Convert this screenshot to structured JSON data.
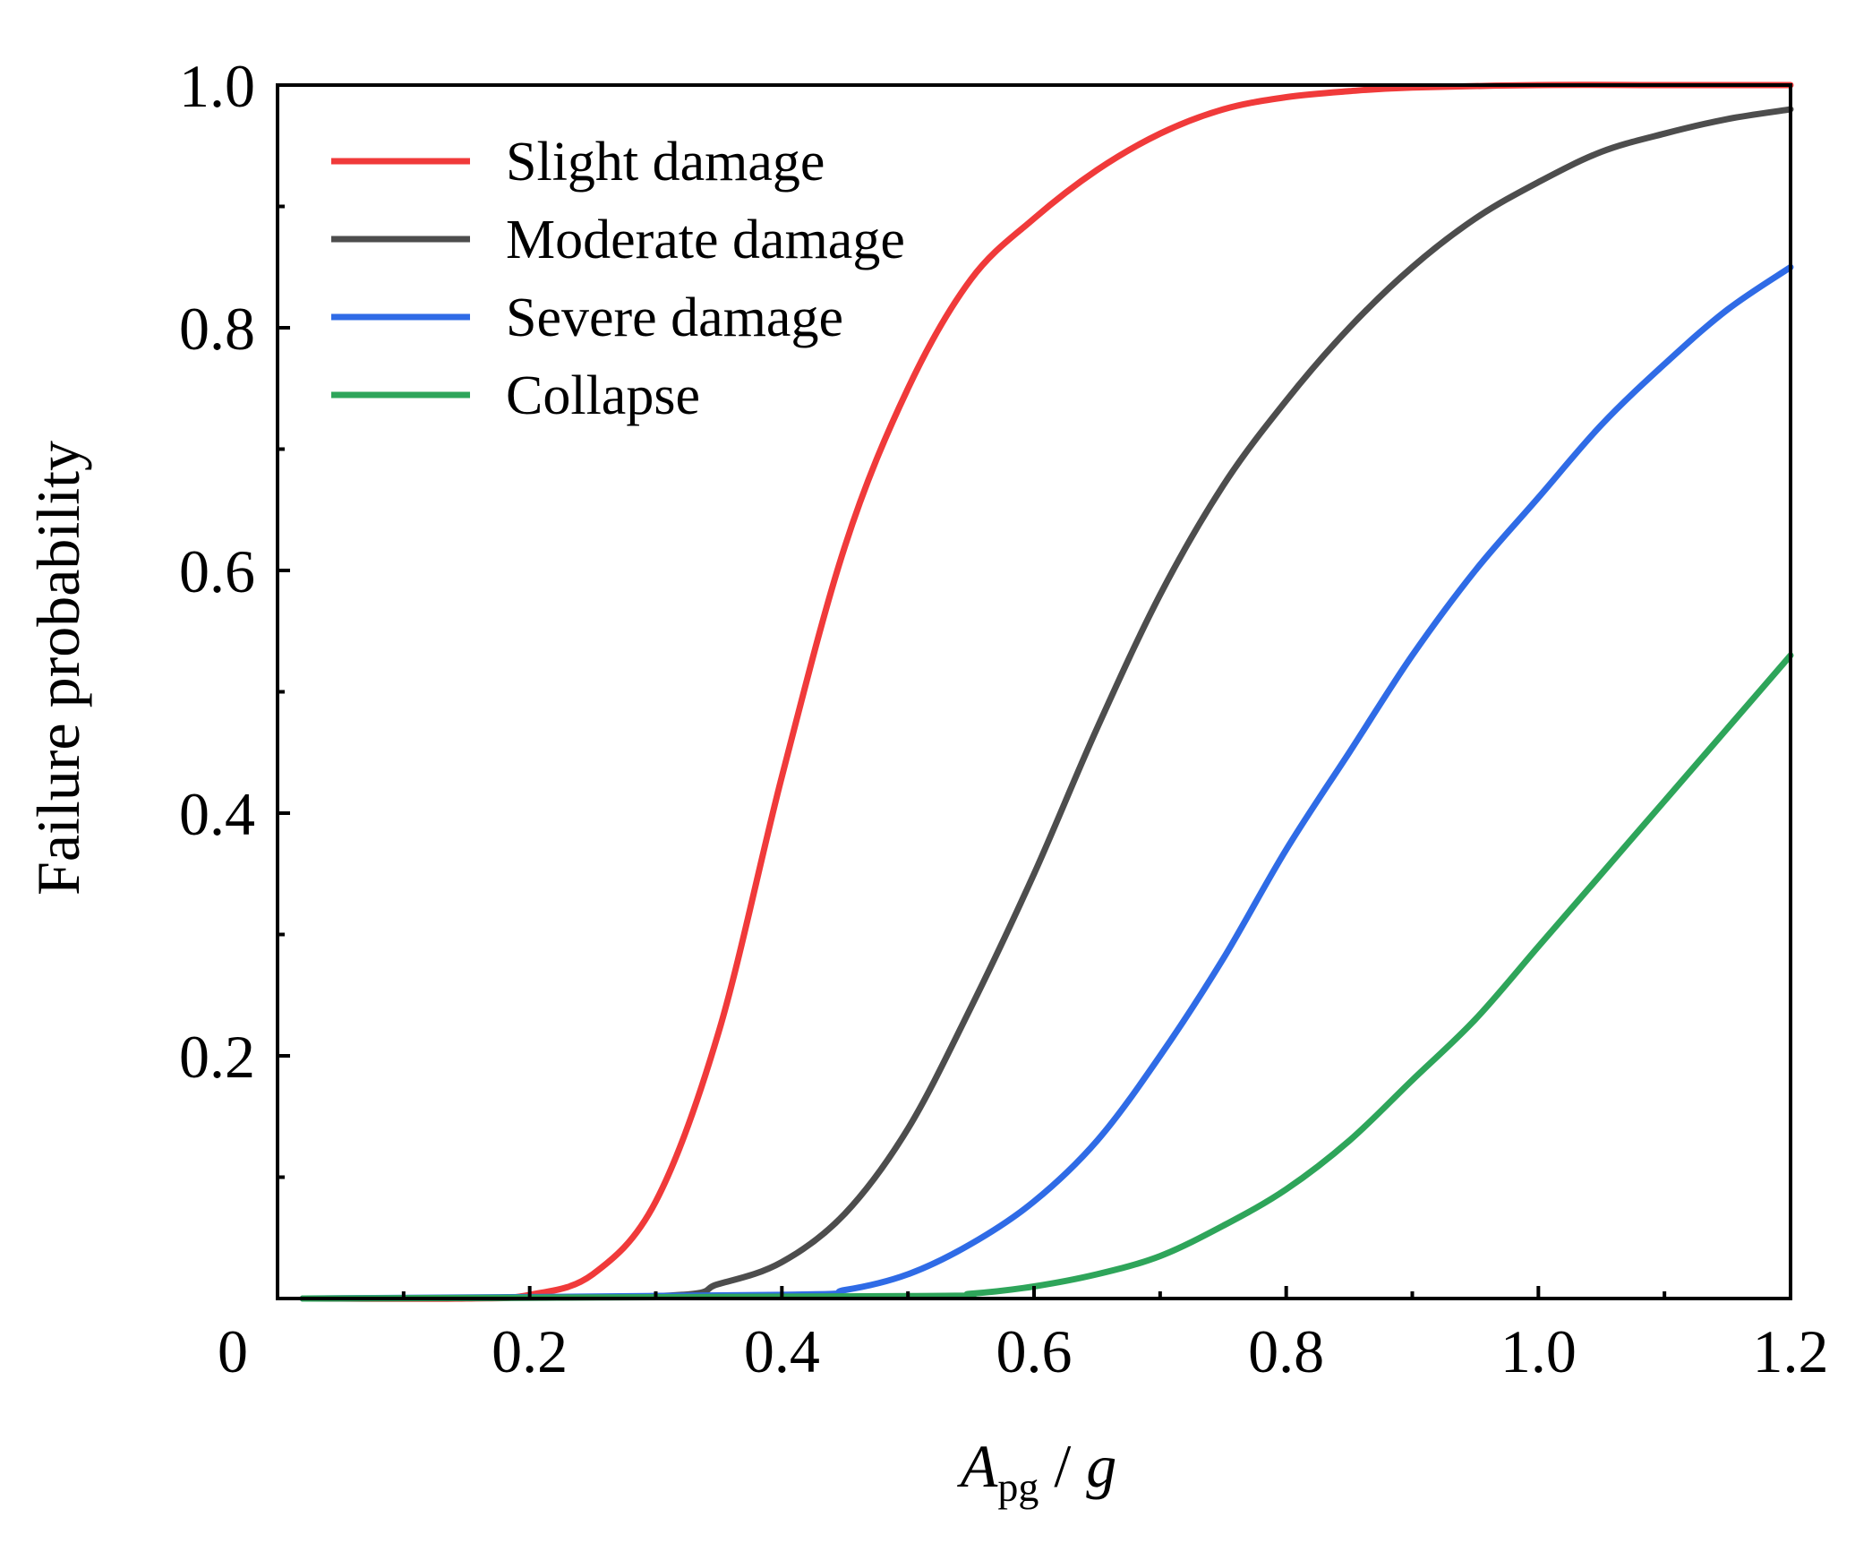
{
  "chart_data": {
    "type": "line",
    "xlabel_main": "A",
    "xlabel_sub": "pg",
    "xlabel_rest": " / ",
    "xlabel_g": "g",
    "ylabel": "Failure probability",
    "xlim": [
      0,
      1.2
    ],
    "ylim": [
      0,
      1.0
    ],
    "x_ticks": [
      {
        "value": 0,
        "label": "0"
      },
      {
        "value": 0.2,
        "label": "0.2"
      },
      {
        "value": 0.4,
        "label": "0.4"
      },
      {
        "value": 0.6,
        "label": "0.6"
      },
      {
        "value": 0.8,
        "label": "0.8"
      },
      {
        "value": 1.0,
        "label": "1.0"
      },
      {
        "value": 1.2,
        "label": "1.2"
      }
    ],
    "x_minor_ticks": [
      0.1,
      0.3,
      0.5,
      0.7,
      0.9,
      1.1
    ],
    "y_ticks": [
      {
        "value": 0.2,
        "label": "0.2"
      },
      {
        "value": 0.4,
        "label": "0.4"
      },
      {
        "value": 0.6,
        "label": "0.6"
      },
      {
        "value": 0.8,
        "label": "0.8"
      },
      {
        "value": 1.0,
        "label": "1.0"
      }
    ],
    "y_minor_ticks": [
      0.1,
      0.3,
      0.5,
      0.7,
      0.9
    ],
    "legend_position": "top-left",
    "series": [
      {
        "name": "Slight damage",
        "color": "#f03a3a",
        "x": [
          0.02,
          0.15,
          0.2,
          0.25,
          0.3,
          0.35,
          0.4,
          0.45,
          0.5,
          0.55,
          0.6,
          0.65,
          0.7,
          0.75,
          0.8,
          0.85,
          0.9,
          1.0,
          1.1,
          1.2
        ],
        "y": [
          0.0,
          0.0,
          0.003,
          0.02,
          0.08,
          0.22,
          0.43,
          0.62,
          0.75,
          0.84,
          0.89,
          0.93,
          0.96,
          0.98,
          0.99,
          0.995,
          0.998,
          1.0,
          1.0,
          1.0
        ]
      },
      {
        "name": "Moderate damage",
        "color": "#4d4d4d",
        "x": [
          0.02,
          0.3,
          0.35,
          0.4,
          0.45,
          0.5,
          0.55,
          0.6,
          0.65,
          0.7,
          0.75,
          0.8,
          0.85,
          0.9,
          0.95,
          1.0,
          1.05,
          1.1,
          1.15,
          1.2
        ],
        "y": [
          0.0,
          0.002,
          0.012,
          0.03,
          0.07,
          0.14,
          0.24,
          0.35,
          0.47,
          0.58,
          0.67,
          0.74,
          0.8,
          0.85,
          0.89,
          0.92,
          0.945,
          0.96,
          0.972,
          0.98
        ]
      },
      {
        "name": "Severe damage",
        "color": "#2f6be6",
        "x": [
          0.02,
          0.4,
          0.45,
          0.5,
          0.55,
          0.6,
          0.65,
          0.7,
          0.75,
          0.8,
          0.85,
          0.9,
          0.95,
          1.0,
          1.05,
          1.1,
          1.15,
          1.2
        ],
        "y": [
          0.0,
          0.003,
          0.007,
          0.02,
          0.045,
          0.08,
          0.13,
          0.2,
          0.28,
          0.37,
          0.45,
          0.53,
          0.6,
          0.66,
          0.72,
          0.77,
          0.815,
          0.85
        ]
      },
      {
        "name": "Collapse",
        "color": "#2ea55a",
        "x": [
          0.02,
          0.5,
          0.55,
          0.6,
          0.65,
          0.7,
          0.75,
          0.8,
          0.85,
          0.9,
          0.95,
          1.0,
          1.05,
          1.1,
          1.15,
          1.2
        ],
        "y": [
          0.0,
          0.002,
          0.004,
          0.01,
          0.02,
          0.035,
          0.06,
          0.09,
          0.13,
          0.18,
          0.23,
          0.29,
          0.35,
          0.41,
          0.47,
          0.53
        ]
      }
    ]
  }
}
